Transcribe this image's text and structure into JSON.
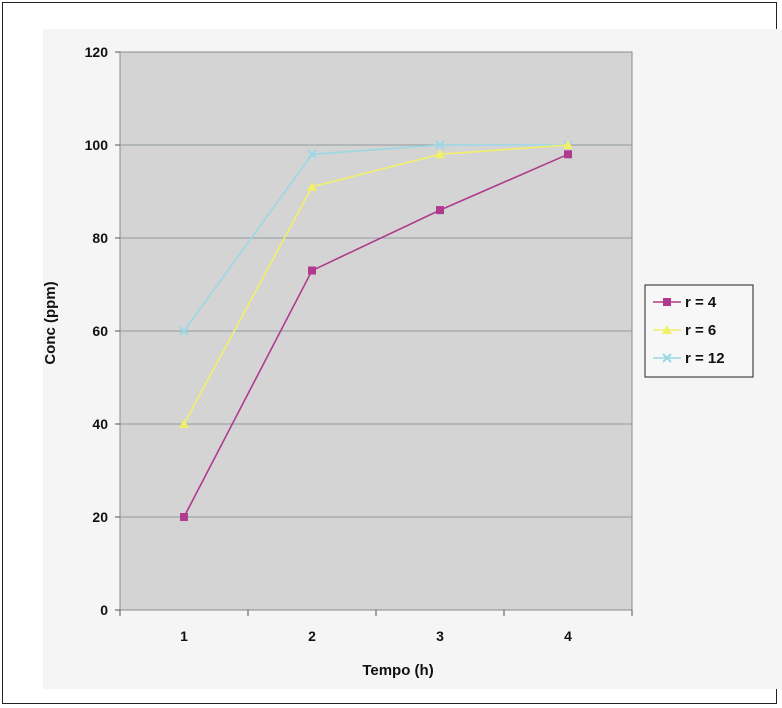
{
  "chart_data": {
    "type": "line",
    "x": [
      1,
      2,
      3,
      4
    ],
    "categories": [
      "1",
      "2",
      "3",
      "4"
    ],
    "xlabel": "Tempo (h)",
    "ylabel": "Conc (ppm)",
    "ylim": [
      0,
      120
    ],
    "yticks": [
      "0",
      "20",
      "40",
      "60",
      "80",
      "100",
      "120"
    ],
    "grid": "horizontal major lines",
    "legend_position": "right",
    "plot_background": "#d4d4d4",
    "series": [
      {
        "name": "r = 4",
        "values": [
          20,
          73,
          86,
          98
        ],
        "color": "#b03a8e",
        "marker": "square"
      },
      {
        "name": "r = 6",
        "values": [
          40,
          91,
          98,
          100
        ],
        "color": "#f2ef6a",
        "marker": "triangle"
      },
      {
        "name": "r = 12",
        "values": [
          60,
          98,
          100,
          100
        ],
        "color": "#9bd8e6",
        "marker": "x"
      }
    ]
  }
}
